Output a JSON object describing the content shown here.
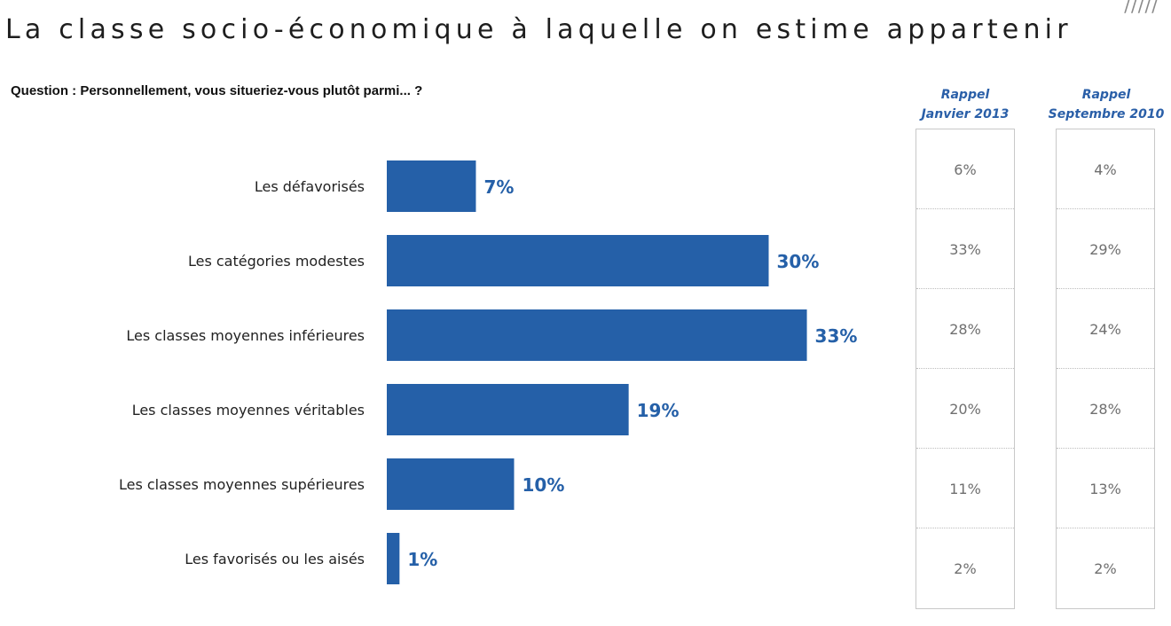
{
  "page": {
    "title": "La classe socio-économique à laquelle on estime appartenir",
    "question": "Question : Personnellement, vous situeriez-vous plutôt parmi... ?",
    "decoration": "/////"
  },
  "colors": {
    "bar": "#2560a8",
    "value_label": "#2560a8"
  },
  "chart_data": {
    "type": "bar",
    "orientation": "horizontal",
    "title": "La classe socio-économique à laquelle on estime appartenir",
    "xlabel": "",
    "ylabel": "",
    "xlim": [
      0,
      100
    ],
    "categories": [
      "Les défavorisés",
      "Les catégories modestes",
      "Les classes moyennes inférieures",
      "Les classes moyennes véritables",
      "Les classes moyennes supérieures",
      "Les favorisés ou les aisés"
    ],
    "values": [
      7,
      30,
      33,
      19,
      10,
      1
    ],
    "value_labels": [
      "7%",
      "30%",
      "33%",
      "19%",
      "10%",
      "1%"
    ]
  },
  "recall_tables": [
    {
      "header_line1": "Rappel",
      "header_line2": "Janvier 2013",
      "values": [
        "6%",
        "33%",
        "28%",
        "20%",
        "11%",
        "2%"
      ]
    },
    {
      "header_line1": "Rappel",
      "header_line2": "Septembre 2010",
      "values": [
        "4%",
        "29%",
        "24%",
        "28%",
        "13%",
        "2%"
      ]
    }
  ]
}
